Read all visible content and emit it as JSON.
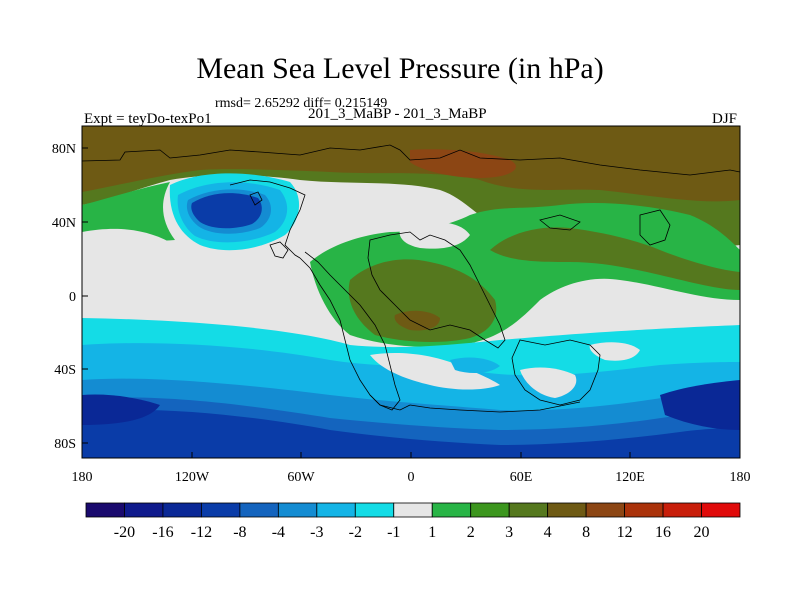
{
  "title": "Mean Sea Level Pressure (in hPa)",
  "stats": "rmsd= 2.65292 diff= 0.215149",
  "experiment": "Expt = teyDo-texPo1",
  "comparison": "201_3_MaBP - 201_3_MaBP",
  "season": "DJF",
  "chart_data": {
    "type": "heatmap",
    "title": "Mean Sea Level Pressure (in hPa)",
    "units": "hPa",
    "x_ticks": [
      "180",
      "120W",
      "60W",
      "0",
      "60E",
      "120E",
      "180"
    ],
    "y_ticks": [
      "80N",
      "40N",
      "0",
      "40S",
      "80S"
    ],
    "colorbar_labels": [
      "-20",
      "-16",
      "-12",
      "-8",
      "-4",
      "-3",
      "-2",
      "-1",
      "1",
      "2",
      "3",
      "4",
      "8",
      "12",
      "16",
      "20"
    ],
    "colorbar_colors": [
      "#1a0a6e",
      "#0f1a8c",
      "#0a2896",
      "#0a3ca8",
      "#1464be",
      "#148cd2",
      "#14b4e6",
      "#14dce6",
      "#e6e6e6",
      "#28b446",
      "#3c961e",
      "#55781e",
      "#6e5a14",
      "#8c4614",
      "#aa320a",
      "#c81e0a",
      "#e00a0a"
    ]
  },
  "colors": {
    "land_outline": "#000000",
    "background": "#ffffff"
  }
}
